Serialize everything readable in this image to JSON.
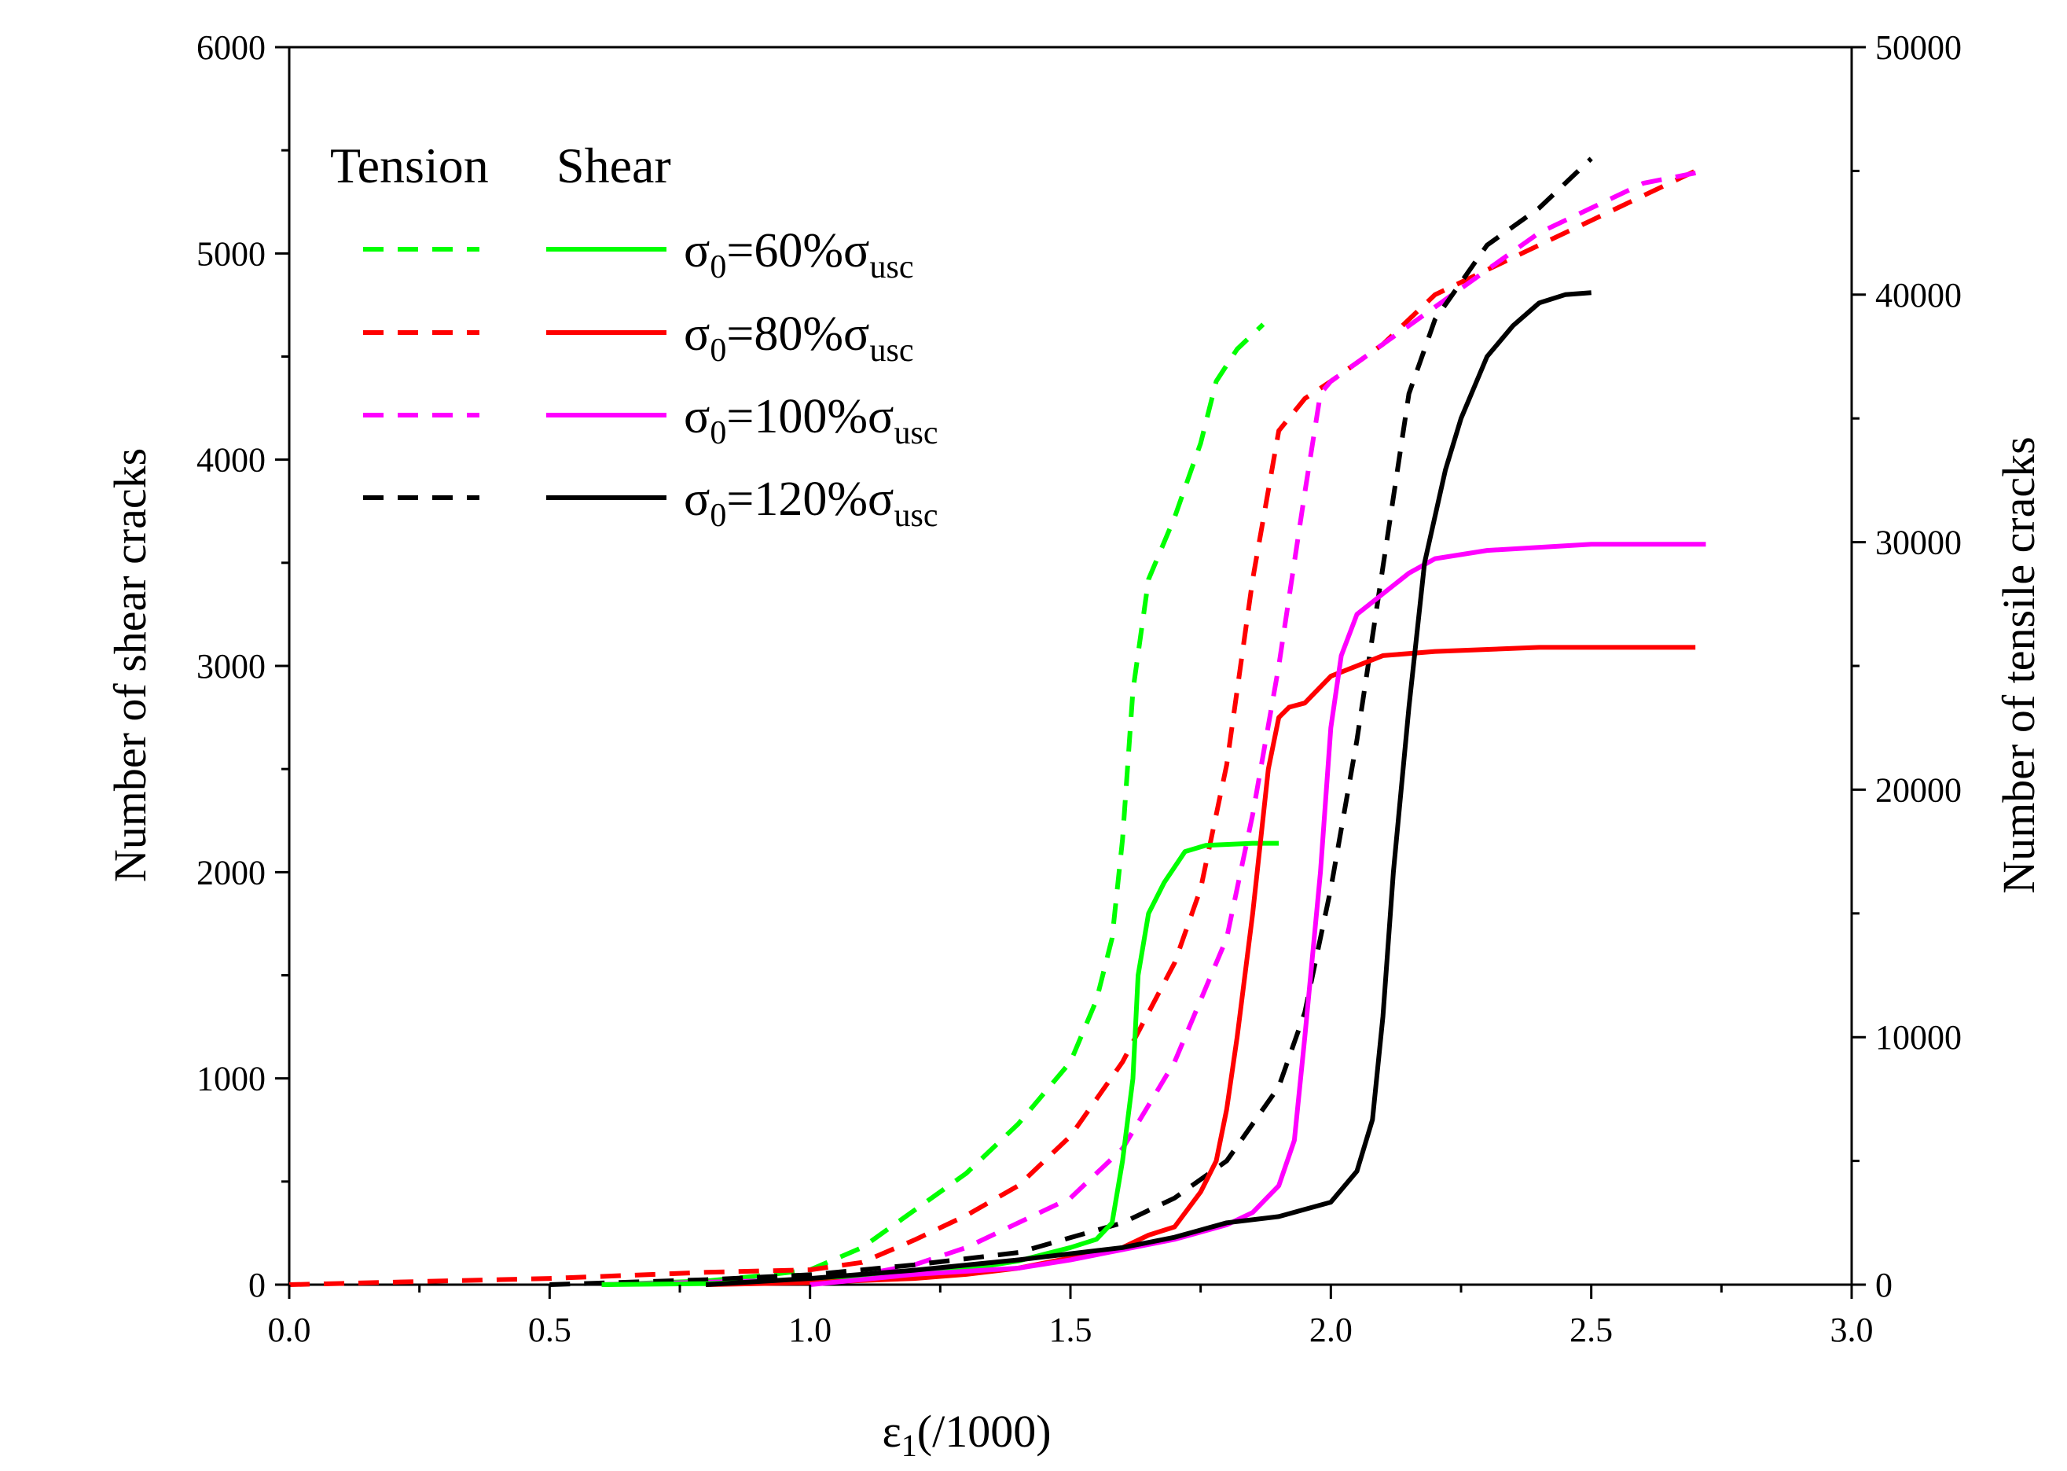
{
  "chart_data": {
    "type": "line",
    "xlabel": {
      "main": "ε",
      "sub": "1",
      "rest": "(/1000)"
    },
    "ylabel_left": "Number of shear cracks",
    "ylabel_right": "Number of tensile cracks",
    "xlim": [
      0,
      3
    ],
    "ylim_left": [
      0,
      6000
    ],
    "ylim_right": [
      0,
      50000
    ],
    "x_ticks": [
      "0.0",
      "0.5",
      "1.0",
      "1.5",
      "2.0",
      "2.5",
      "3.0"
    ],
    "y_left_ticks": [
      "0",
      "1000",
      "2000",
      "3000",
      "4000",
      "5000",
      "6000"
    ],
    "y_right_ticks": [
      "0",
      "10000",
      "20000",
      "30000",
      "40000",
      "50000"
    ],
    "legend": {
      "header_tension": "Tension",
      "header_shear": "Shear",
      "entries": [
        {
          "prefix": "σ",
          "sub0": "0",
          "mid": "=60%σ",
          "sub": "usc",
          "color": "#00ff00"
        },
        {
          "prefix": "σ",
          "sub0": "0",
          "mid": "=80%σ",
          "sub": "usc",
          "color": "#ff0000"
        },
        {
          "prefix": "σ",
          "sub0": "0",
          "mid": "=100%σ",
          "sub": "usc",
          "color": "#ff00ff"
        },
        {
          "prefix": "σ",
          "sub0": "0",
          "mid": "=120%σ",
          "sub": "usc",
          "color": "#000000"
        }
      ]
    },
    "series": [
      {
        "name": "Tension σ0=60%σusc",
        "axis": "right",
        "style": "dashed",
        "color": "#00ff00",
        "x": [
          0.6,
          0.8,
          0.9,
          1.0,
          1.1,
          1.2,
          1.3,
          1.4,
          1.5,
          1.55,
          1.58,
          1.6,
          1.62,
          1.65,
          1.7,
          1.75,
          1.78,
          1.82,
          1.87
        ],
        "y": [
          0,
          150,
          350,
          600,
          1500,
          3000,
          4500,
          6500,
          9000,
          11500,
          14000,
          18000,
          24000,
          28500,
          31000,
          34000,
          36500,
          37800,
          38800
        ]
      },
      {
        "name": "Tension σ0=80%σusc",
        "axis": "right",
        "style": "dashed",
        "color": "#ff0000",
        "x": [
          0.0,
          0.5,
          0.8,
          1.0,
          1.1,
          1.2,
          1.3,
          1.4,
          1.5,
          1.6,
          1.7,
          1.75,
          1.8,
          1.85,
          1.9,
          1.95,
          2.0,
          2.1,
          2.2,
          2.3,
          2.4,
          2.5,
          2.6,
          2.7
        ],
        "y": [
          0,
          250,
          500,
          600,
          900,
          1800,
          2800,
          4000,
          6000,
          9000,
          13000,
          16000,
          21000,
          28500,
          34500,
          35800,
          36500,
          38000,
          40000,
          41000,
          42000,
          43000,
          44000,
          45000
        ]
      },
      {
        "name": "Tension σ0=100%σusc",
        "axis": "right",
        "style": "dashed",
        "color": "#ff00ff",
        "x": [
          0.6,
          1.0,
          1.1,
          1.2,
          1.3,
          1.4,
          1.5,
          1.6,
          1.7,
          1.8,
          1.85,
          1.9,
          1.95,
          1.98,
          2.0,
          2.1,
          2.2,
          2.3,
          2.4,
          2.5,
          2.6,
          2.72
        ],
        "y": [
          0,
          200,
          400,
          800,
          1500,
          2500,
          3500,
          5500,
          9000,
          14000,
          19000,
          25000,
          32000,
          36000,
          36500,
          38000,
          39500,
          41000,
          42500,
          43500,
          44500,
          45000
        ]
      },
      {
        "name": "Tension σ0=120%σusc",
        "axis": "right",
        "style": "dashed",
        "color": "#000000",
        "x": [
          0.5,
          0.8,
          1.0,
          1.2,
          1.4,
          1.6,
          1.7,
          1.8,
          1.9,
          1.95,
          2.0,
          2.05,
          2.1,
          2.15,
          2.2,
          2.25,
          2.3,
          2.4,
          2.5
        ],
        "y": [
          0,
          200,
          400,
          800,
          1300,
          2500,
          3500,
          5000,
          8000,
          11000,
          16000,
          22000,
          29000,
          36000,
          39000,
          40500,
          42000,
          43500,
          45500
        ]
      },
      {
        "name": "Shear σ0=60%σusc",
        "axis": "left",
        "style": "solid",
        "color": "#00ff00",
        "x": [
          0.6,
          0.8,
          1.0,
          1.2,
          1.3,
          1.4,
          1.5,
          1.55,
          1.58,
          1.6,
          1.62,
          1.63,
          1.65,
          1.68,
          1.72,
          1.76,
          1.85,
          1.9
        ],
        "y": [
          0,
          5,
          20,
          50,
          75,
          115,
          180,
          220,
          300,
          600,
          1000,
          1500,
          1800,
          1950,
          2100,
          2130,
          2140,
          2140
        ]
      },
      {
        "name": "Shear σ0=80%σusc",
        "axis": "left",
        "style": "solid",
        "color": "#ff0000",
        "x": [
          0.8,
          1.0,
          1.1,
          1.2,
          1.3,
          1.4,
          1.5,
          1.6,
          1.65,
          1.7,
          1.75,
          1.78,
          1.8,
          1.82,
          1.85,
          1.88,
          1.9,
          1.92,
          1.95,
          2.0,
          2.1,
          2.2,
          2.4,
          2.7
        ],
        "y": [
          0,
          10,
          20,
          30,
          50,
          80,
          130,
          180,
          240,
          280,
          450,
          600,
          850,
          1200,
          1800,
          2500,
          2750,
          2800,
          2820,
          2950,
          3050,
          3070,
          3090,
          3090
        ]
      },
      {
        "name": "Shear σ0=100%σusc",
        "axis": "left",
        "style": "solid",
        "color": "#ff00ff",
        "x": [
          1.0,
          1.2,
          1.4,
          1.5,
          1.6,
          1.7,
          1.8,
          1.85,
          1.9,
          1.93,
          1.95,
          1.98,
          2.0,
          2.02,
          2.05,
          2.1,
          2.15,
          2.2,
          2.3,
          2.5,
          2.72
        ],
        "y": [
          0,
          50,
          80,
          120,
          170,
          220,
          290,
          350,
          480,
          700,
          1200,
          2000,
          2700,
          3050,
          3250,
          3350,
          3450,
          3520,
          3560,
          3590,
          3590
        ]
      },
      {
        "name": "Shear σ0=120%σusc",
        "axis": "left",
        "style": "solid",
        "color": "#000000",
        "x": [
          0.8,
          1.0,
          1.2,
          1.4,
          1.6,
          1.7,
          1.8,
          1.9,
          2.0,
          2.05,
          2.08,
          2.1,
          2.12,
          2.15,
          2.18,
          2.22,
          2.25,
          2.3,
          2.35,
          2.4,
          2.45,
          2.5
        ],
        "y": [
          0,
          30,
          70,
          120,
          180,
          230,
          300,
          330,
          400,
          550,
          800,
          1300,
          2000,
          2800,
          3500,
          3950,
          4200,
          4500,
          4650,
          4760,
          4800,
          4810
        ]
      }
    ]
  }
}
